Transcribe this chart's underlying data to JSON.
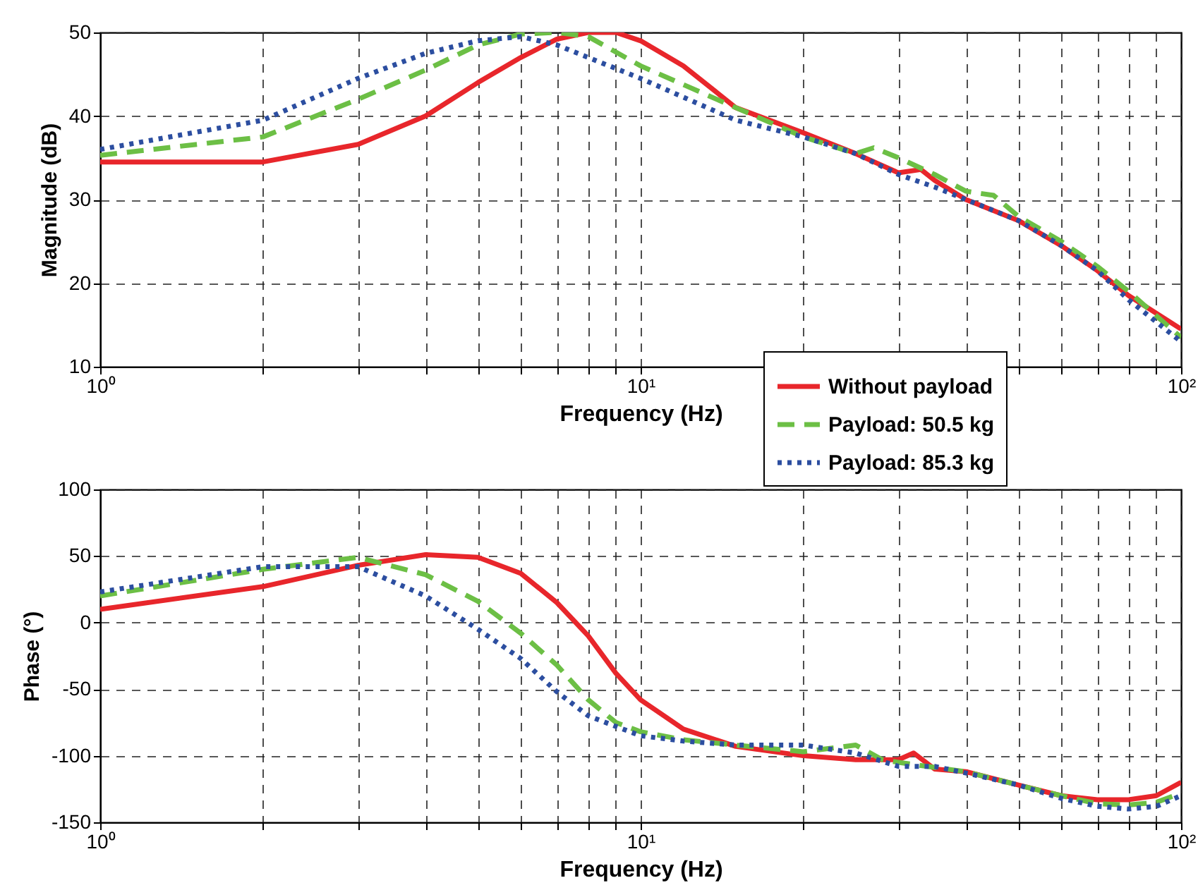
{
  "chart_data": [
    {
      "type": "line",
      "xlabel": "Frequency (Hz)",
      "ylabel": "Magnitude (dB)",
      "log": "x",
      "grid": true,
      "legend": "bottom right",
      "xlim": [
        1,
        100
      ],
      "ylim": [
        10,
        50
      ],
      "xticks": [
        {
          "value": 1,
          "label": "10⁰"
        },
        {
          "value": 2,
          "label": null
        },
        {
          "value": 3,
          "label": null
        },
        {
          "value": 4,
          "label": null
        },
        {
          "value": 5,
          "label": null
        },
        {
          "value": 6,
          "label": null
        },
        {
          "value": 7,
          "label": null
        },
        {
          "value": 8,
          "label": null
        },
        {
          "value": 9,
          "label": null
        },
        {
          "value": 10,
          "label": "10¹"
        },
        {
          "value": 20,
          "label": null
        },
        {
          "value": 30,
          "label": null
        },
        {
          "value": 40,
          "label": null
        },
        {
          "value": 50,
          "label": null
        },
        {
          "value": 60,
          "label": null
        },
        {
          "value": 70,
          "label": null
        },
        {
          "value": 80,
          "label": null
        },
        {
          "value": 90,
          "label": null
        },
        {
          "value": 100,
          "label": "10²"
        }
      ],
      "yticks": [
        10,
        20,
        30,
        40,
        50
      ],
      "series": [
        {
          "name": "Without payload",
          "color": "#e8262b",
          "line_style": "solid",
          "x": [
            1,
            2,
            3,
            4,
            5,
            6,
            7,
            8,
            9,
            10,
            12,
            15,
            20,
            25,
            30,
            33,
            35,
            40,
            50,
            60,
            70,
            80,
            100
          ],
          "values": [
            34.5,
            34.5,
            36.6,
            40,
            44,
            47,
            49.2,
            50,
            50,
            49,
            46,
            41,
            38,
            35.5,
            33.2,
            33.6,
            32.3,
            30,
            27.5,
            24.5,
            21.5,
            18.5,
            14.5
          ]
        },
        {
          "name": "Payload: 50.5 kg",
          "color": "#6cbf45",
          "line_style": "dashed",
          "x": [
            1,
            2,
            3,
            4,
            5,
            6,
            7,
            8,
            10,
            15,
            20,
            25,
            27,
            30,
            35,
            40,
            45,
            50,
            60,
            70,
            80,
            100
          ],
          "values": [
            35.3,
            37.5,
            42,
            45.5,
            48.5,
            49.8,
            50,
            49.5,
            46,
            41,
            37.5,
            35.5,
            36.2,
            35,
            33,
            31,
            30.5,
            28,
            25,
            22,
            19,
            13.5
          ]
        },
        {
          "name": "Payload: 85.3 kg",
          "color": "#2c4ea0",
          "line_style": "dotted",
          "x": [
            1,
            2,
            3,
            4,
            5,
            6,
            7,
            8,
            10,
            15,
            20,
            25,
            30,
            35,
            40,
            50,
            60,
            70,
            80,
            100
          ],
          "values": [
            36,
            39.5,
            44.5,
            47.5,
            49,
            49.5,
            48.5,
            47,
            44.5,
            39.5,
            37.5,
            35.5,
            33,
            31.5,
            30,
            27.5,
            24.5,
            21.5,
            18,
            13
          ]
        }
      ]
    },
    {
      "type": "line",
      "xlabel": "Frequency (Hz)",
      "ylabel": "Phase (°)",
      "log": "x",
      "grid": true,
      "xlim": [
        1,
        100
      ],
      "ylim": [
        -150,
        100
      ],
      "xticks": [
        {
          "value": 1,
          "label": "10⁰"
        },
        {
          "value": 2,
          "label": null
        },
        {
          "value": 3,
          "label": null
        },
        {
          "value": 4,
          "label": null
        },
        {
          "value": 5,
          "label": null
        },
        {
          "value": 6,
          "label": null
        },
        {
          "value": 7,
          "label": null
        },
        {
          "value": 8,
          "label": null
        },
        {
          "value": 9,
          "label": null
        },
        {
          "value": 10,
          "label": "10¹"
        },
        {
          "value": 20,
          "label": null
        },
        {
          "value": 30,
          "label": null
        },
        {
          "value": 40,
          "label": null
        },
        {
          "value": 50,
          "label": null
        },
        {
          "value": 60,
          "label": null
        },
        {
          "value": 70,
          "label": null
        },
        {
          "value": 80,
          "label": null
        },
        {
          "value": 90,
          "label": null
        },
        {
          "value": 100,
          "label": "10²"
        }
      ],
      "yticks": [
        -150,
        -100,
        -50,
        0,
        50,
        100
      ],
      "series": [
        {
          "color": "#e8262b",
          "line_style": "solid",
          "x": [
            1,
            2,
            3,
            4,
            5,
            6,
            7,
            8,
            9,
            10,
            12,
            15,
            20,
            25,
            30,
            32,
            35,
            40,
            50,
            60,
            70,
            80,
            90,
            100
          ],
          "values": [
            10,
            27,
            43,
            51,
            49,
            37,
            15,
            -10,
            -38,
            -58,
            -80,
            -93,
            -100,
            -103,
            -103,
            -98,
            -110,
            -112,
            -122,
            -130,
            -133,
            -133,
            -130,
            -120
          ]
        },
        {
          "color": "#6cbf45",
          "line_style": "dashed",
          "x": [
            1,
            2,
            3,
            4,
            5,
            6,
            7,
            8,
            9,
            10,
            12,
            15,
            20,
            25,
            28,
            30,
            40,
            50,
            60,
            70,
            80,
            90,
            100
          ],
          "values": [
            20,
            40,
            49,
            36,
            16,
            -8,
            -32,
            -58,
            -75,
            -82,
            -88,
            -92,
            -97,
            -92,
            -103,
            -105,
            -112,
            -122,
            -130,
            -136,
            -137,
            -135,
            -128
          ]
        },
        {
          "color": "#2c4ea0",
          "line_style": "dotted",
          "x": [
            1,
            2,
            3,
            4,
            5,
            6,
            7,
            8,
            9,
            10,
            12,
            15,
            20,
            25,
            30,
            35,
            40,
            50,
            60,
            70,
            80,
            90,
            100
          ],
          "values": [
            23,
            42,
            42,
            20,
            -5,
            -27,
            -52,
            -70,
            -78,
            -85,
            -89,
            -92,
            -92,
            -98,
            -108,
            -108,
            -113,
            -122,
            -132,
            -138,
            -140,
            -138,
            -130
          ]
        }
      ]
    }
  ]
}
